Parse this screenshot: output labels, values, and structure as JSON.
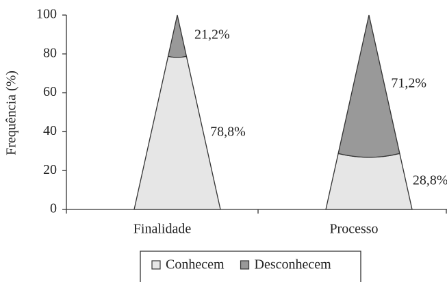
{
  "chart_data": {
    "type": "cone",
    "categories": [
      "Finalidade",
      "Processo"
    ],
    "y_label": "Frequência (%)",
    "series": [
      {
        "name": "Conhecem",
        "color": "#e6e6e6",
        "values": [
          78.8,
          28.8
        ],
        "value_labels": [
          "78,8%",
          "28,8%"
        ]
      },
      {
        "name": "Desconhecem",
        "color": "#999999",
        "values": [
          21.2,
          71.2
        ],
        "value_labels": [
          "21,2%",
          "71,2%"
        ]
      }
    ],
    "ylim": [
      0,
      100
    ],
    "yticks": [
      0,
      20,
      40,
      60,
      80,
      100
    ],
    "stacked": true,
    "legend": "bottom"
  }
}
